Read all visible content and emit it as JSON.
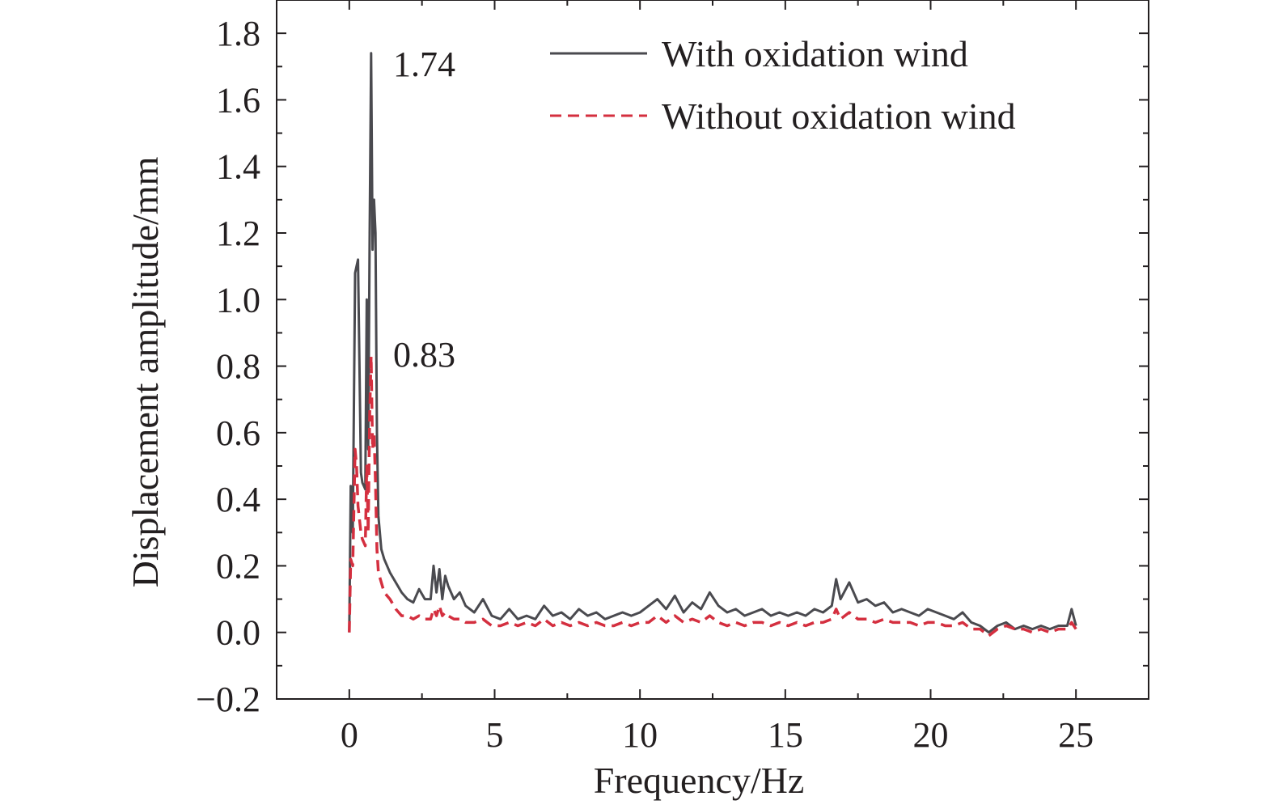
{
  "chart_data": {
    "type": "line",
    "xlabel": "Frequency/Hz",
    "ylabel": "Displacement amplitude/mm",
    "xlim": [
      -2.5,
      27.5
    ],
    "ylim": [
      -0.2,
      1.9
    ],
    "x_ticks": [
      0,
      5,
      10,
      15,
      20,
      25
    ],
    "x_tick_labels": [
      "0",
      "5",
      "10",
      "15",
      "20",
      "25"
    ],
    "y_ticks": [
      -0.2,
      0.0,
      0.2,
      0.4,
      0.6,
      0.8,
      1.0,
      1.2,
      1.4,
      1.6,
      1.8
    ],
    "y_tick_labels": [
      "−0.2",
      "0.0",
      "0.2",
      "0.4",
      "0.6",
      "0.8",
      "1.0",
      "1.2",
      "1.4",
      "1.6",
      "1.8"
    ],
    "grid": false,
    "legend_position": "top-right",
    "annotations": [
      {
        "text": "1.74",
        "x": 1.55,
        "y": 1.74
      },
      {
        "text": "0.83",
        "x": 1.55,
        "y": 0.83
      }
    ],
    "series": [
      {
        "name": "With oxidation wind",
        "color": "#4a4a4f",
        "style": "solid",
        "x": [
          0.0,
          0.05,
          0.12,
          0.2,
          0.25,
          0.3,
          0.4,
          0.45,
          0.5,
          0.55,
          0.6,
          0.65,
          0.7,
          0.75,
          0.8,
          0.85,
          0.9,
          0.95,
          1.0,
          1.1,
          1.2,
          1.4,
          1.6,
          1.8,
          2.0,
          2.2,
          2.4,
          2.6,
          2.8,
          2.9,
          3.0,
          3.1,
          3.2,
          3.3,
          3.4,
          3.6,
          3.8,
          4.0,
          4.3,
          4.6,
          4.9,
          5.2,
          5.5,
          5.8,
          6.1,
          6.4,
          6.7,
          7.0,
          7.3,
          7.6,
          7.9,
          8.2,
          8.5,
          8.8,
          9.1,
          9.4,
          9.7,
          10.0,
          10.3,
          10.6,
          10.9,
          11.2,
          11.5,
          11.8,
          12.1,
          12.4,
          12.7,
          13.0,
          13.3,
          13.6,
          13.9,
          14.2,
          14.5,
          14.8,
          15.1,
          15.4,
          15.7,
          16.0,
          16.3,
          16.6,
          16.75,
          16.9,
          17.2,
          17.5,
          17.8,
          18.1,
          18.4,
          18.7,
          19.0,
          19.3,
          19.6,
          19.9,
          20.2,
          20.5,
          20.8,
          21.1,
          21.4,
          21.7,
          22.0,
          22.3,
          22.6,
          22.9,
          23.2,
          23.5,
          23.8,
          24.1,
          24.4,
          24.7,
          24.85,
          25.0
        ],
        "y": [
          0.0,
          0.44,
          0.3,
          1.08,
          1.1,
          1.12,
          0.48,
          0.45,
          0.44,
          0.43,
          1.0,
          0.55,
          1.2,
          1.74,
          1.15,
          1.3,
          1.2,
          0.6,
          0.35,
          0.25,
          0.22,
          0.18,
          0.15,
          0.12,
          0.1,
          0.09,
          0.13,
          0.1,
          0.1,
          0.2,
          0.12,
          0.19,
          0.1,
          0.17,
          0.14,
          0.1,
          0.12,
          0.08,
          0.06,
          0.1,
          0.05,
          0.04,
          0.07,
          0.04,
          0.05,
          0.04,
          0.08,
          0.05,
          0.06,
          0.04,
          0.07,
          0.05,
          0.06,
          0.04,
          0.05,
          0.06,
          0.05,
          0.06,
          0.08,
          0.1,
          0.07,
          0.11,
          0.06,
          0.09,
          0.07,
          0.12,
          0.08,
          0.06,
          0.07,
          0.05,
          0.06,
          0.07,
          0.05,
          0.06,
          0.05,
          0.06,
          0.05,
          0.07,
          0.06,
          0.08,
          0.16,
          0.1,
          0.15,
          0.09,
          0.1,
          0.08,
          0.09,
          0.06,
          0.07,
          0.06,
          0.05,
          0.07,
          0.06,
          0.05,
          0.04,
          0.06,
          0.03,
          0.02,
          0.0,
          0.02,
          0.03,
          0.01,
          0.02,
          0.01,
          0.02,
          0.01,
          0.02,
          0.02,
          0.07,
          0.02
        ]
      },
      {
        "name": "Without oxidation wind",
        "color": "#d42f3f",
        "style": "dashed",
        "x": [
          0.0,
          0.05,
          0.12,
          0.2,
          0.25,
          0.3,
          0.4,
          0.45,
          0.5,
          0.55,
          0.6,
          0.65,
          0.7,
          0.75,
          0.8,
          0.85,
          0.9,
          0.95,
          1.0,
          1.1,
          1.2,
          1.4,
          1.6,
          1.8,
          2.0,
          2.2,
          2.4,
          2.6,
          2.8,
          2.9,
          3.0,
          3.1,
          3.2,
          3.3,
          3.4,
          3.6,
          3.8,
          4.0,
          4.3,
          4.6,
          4.9,
          5.2,
          5.5,
          5.8,
          6.1,
          6.4,
          6.7,
          7.0,
          7.3,
          7.6,
          7.9,
          8.2,
          8.5,
          8.8,
          9.1,
          9.4,
          9.7,
          10.0,
          10.3,
          10.6,
          10.9,
          11.2,
          11.5,
          11.8,
          12.1,
          12.4,
          12.7,
          13.0,
          13.3,
          13.6,
          13.9,
          14.2,
          14.5,
          14.8,
          15.1,
          15.4,
          15.7,
          16.0,
          16.3,
          16.6,
          16.75,
          16.9,
          17.2,
          17.5,
          17.8,
          18.1,
          18.4,
          18.7,
          19.0,
          19.3,
          19.6,
          19.9,
          20.2,
          20.5,
          20.8,
          21.1,
          21.4,
          21.7,
          22.0,
          22.3,
          22.6,
          22.9,
          23.2,
          23.5,
          23.8,
          24.1,
          24.4,
          24.7,
          24.85,
          25.0
        ],
        "y": [
          0.0,
          0.22,
          0.2,
          0.55,
          0.5,
          0.38,
          0.3,
          0.28,
          0.27,
          0.26,
          0.5,
          0.3,
          0.65,
          0.83,
          0.55,
          0.6,
          0.45,
          0.25,
          0.18,
          0.15,
          0.12,
          0.1,
          0.07,
          0.05,
          0.05,
          0.04,
          0.05,
          0.04,
          0.04,
          0.07,
          0.05,
          0.08,
          0.05,
          0.06,
          0.05,
          0.04,
          0.04,
          0.03,
          0.03,
          0.04,
          0.02,
          0.02,
          0.03,
          0.02,
          0.03,
          0.02,
          0.04,
          0.02,
          0.03,
          0.02,
          0.03,
          0.02,
          0.03,
          0.02,
          0.02,
          0.03,
          0.02,
          0.03,
          0.03,
          0.05,
          0.03,
          0.05,
          0.03,
          0.04,
          0.03,
          0.05,
          0.03,
          0.02,
          0.03,
          0.02,
          0.03,
          0.03,
          0.02,
          0.03,
          0.02,
          0.03,
          0.02,
          0.03,
          0.03,
          0.04,
          0.07,
          0.04,
          0.06,
          0.04,
          0.04,
          0.03,
          0.04,
          0.03,
          0.03,
          0.03,
          0.02,
          0.03,
          0.03,
          0.02,
          0.02,
          0.03,
          0.01,
          0.01,
          -0.01,
          0.01,
          0.02,
          0.01,
          0.01,
          0.0,
          0.01,
          0.0,
          0.01,
          0.01,
          0.03,
          0.01
        ]
      }
    ]
  }
}
